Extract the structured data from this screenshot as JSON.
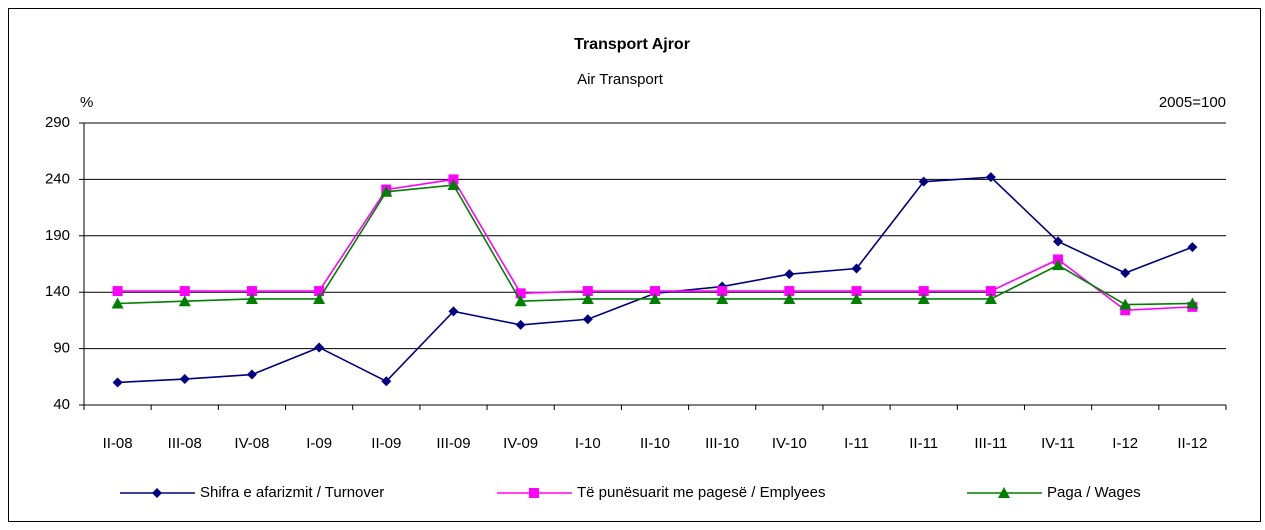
{
  "chart_data": {
    "type": "line",
    "title": "Transport Ajror",
    "subtitle": "Air Transport",
    "y_unit": "%",
    "note": "2005=100",
    "categories": [
      "II-08",
      "III-08",
      "IV-08",
      "I-09",
      "II-09",
      "III-09",
      "IV-09",
      "I-10",
      "II-10",
      "III-10",
      "IV-10",
      "I-11",
      "II-11",
      "III-11",
      "IV-11",
      "I-12",
      "II-12"
    ],
    "series": [
      {
        "name": "Shifra e afarizmit / Turnover",
        "color": "#000080",
        "marker": "diamond",
        "values": [
          60,
          63,
          67,
          91,
          61,
          123,
          111,
          116,
          139,
          145,
          156,
          161,
          238,
          242,
          185,
          157,
          180
        ]
      },
      {
        "name": "Të punësuarit me pagesë / Emplyees",
        "color": "#ff00ff",
        "marker": "square",
        "values": [
          141,
          141,
          141,
          141,
          231,
          240,
          139,
          141,
          141,
          141,
          141,
          141,
          141,
          141,
          169,
          124,
          127
        ]
      },
      {
        "name": "Paga / Wages",
        "color": "#008000",
        "marker": "triangle",
        "values": [
          130,
          132,
          134,
          134,
          229,
          235,
          132,
          134,
          134,
          134,
          134,
          134,
          134,
          134,
          164,
          129,
          130
        ]
      }
    ],
    "ylim": [
      40,
      290
    ],
    "yticks": [
      40,
      90,
      140,
      190,
      240,
      290
    ],
    "grid": true,
    "legend": "bottom"
  }
}
